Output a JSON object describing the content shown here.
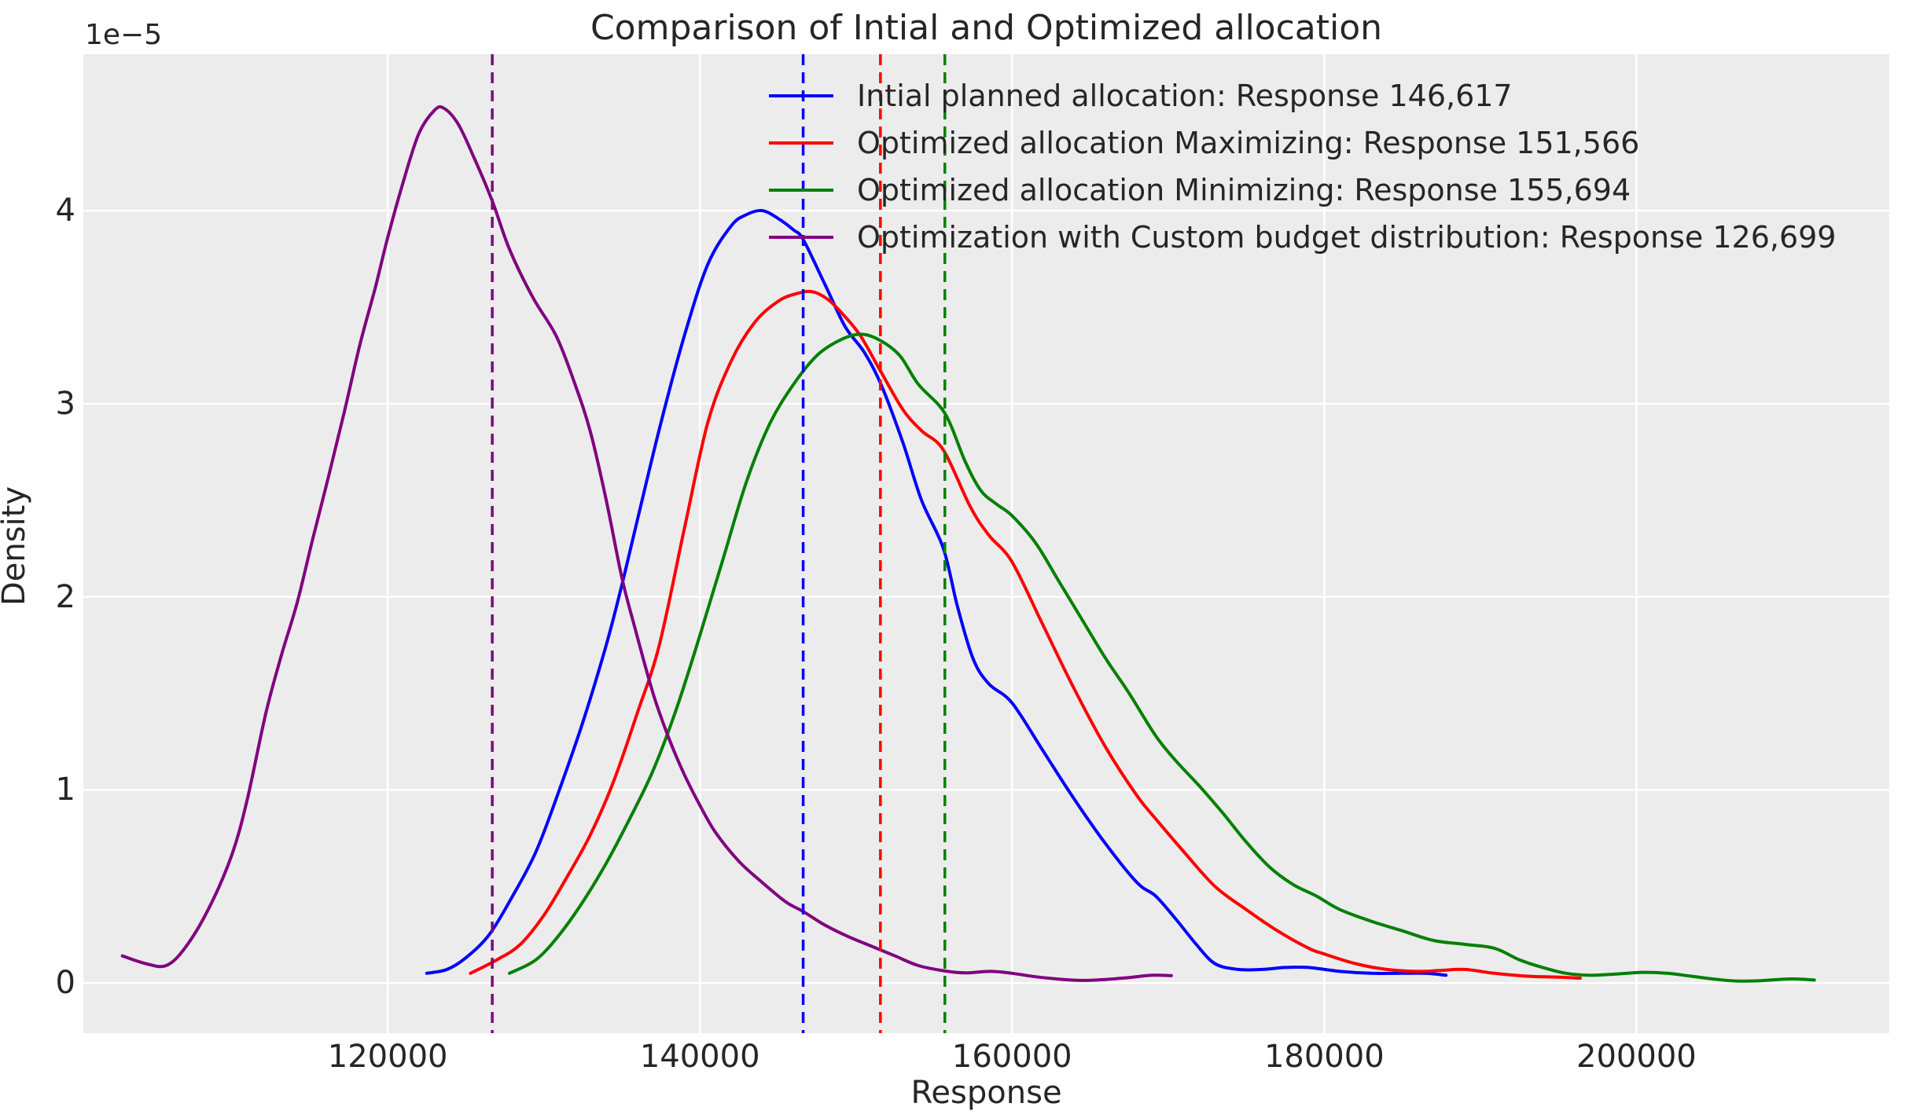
{
  "figure": {
    "title": "Comparison of Intial and Optimized allocation",
    "background_color": "#ffffff",
    "axes_background_color": "#ececec",
    "grid_color": "#ffffff",
    "text_color": "#262626"
  },
  "chart_data": {
    "type": "line",
    "title": "Comparison of Intial and Optimized allocation",
    "xlabel": "Response",
    "ylabel": "Density",
    "y_offset_label": "1e−5",
    "y_unit": "1e-5",
    "grid": true,
    "legend_frame": false,
    "legend_position": "upper center",
    "xlim": [
      100500,
      216200
    ],
    "ylim": [
      -0.26,
      4.81
    ],
    "x_ticks": [
      120000,
      140000,
      160000,
      180000,
      200000
    ],
    "x_tick_labels": [
      "120000",
      "140000",
      "160000",
      "180000",
      "200000"
    ],
    "y_ticks": [
      0,
      1,
      2,
      3,
      4
    ],
    "y_tick_labels": [
      "0",
      "1",
      "2",
      "3",
      "4"
    ],
    "series": [
      {
        "name": "Intial planned allocation: Response 146,617",
        "color": "#0000ff",
        "style": "solid",
        "points": [
          [
            122500,
            0.05
          ],
          [
            123800,
            0.07
          ],
          [
            125000,
            0.13
          ],
          [
            126500,
            0.25
          ],
          [
            128000,
            0.45
          ],
          [
            129500,
            0.68
          ],
          [
            131000,
            1.0
          ],
          [
            132500,
            1.35
          ],
          [
            134000,
            1.75
          ],
          [
            135000,
            2.06
          ],
          [
            136000,
            2.4
          ],
          [
            137500,
            2.9
          ],
          [
            139000,
            3.35
          ],
          [
            140500,
            3.72
          ],
          [
            142000,
            3.92
          ],
          [
            143000,
            3.98
          ],
          [
            144000,
            4.0
          ],
          [
            145000,
            3.96
          ],
          [
            146000,
            3.9
          ],
          [
            146617,
            3.85
          ],
          [
            148000,
            3.62
          ],
          [
            149300,
            3.4
          ],
          [
            150500,
            3.27
          ],
          [
            151600,
            3.1
          ],
          [
            153000,
            2.8
          ],
          [
            154200,
            2.5
          ],
          [
            155600,
            2.25
          ],
          [
            156500,
            1.95
          ],
          [
            157500,
            1.68
          ],
          [
            158500,
            1.55
          ],
          [
            160000,
            1.45
          ],
          [
            162000,
            1.2
          ],
          [
            164000,
            0.95
          ],
          [
            166000,
            0.72
          ],
          [
            168000,
            0.52
          ],
          [
            169200,
            0.45
          ],
          [
            170500,
            0.33
          ],
          [
            171800,
            0.2
          ],
          [
            173000,
            0.1
          ],
          [
            174500,
            0.07
          ],
          [
            176000,
            0.07
          ],
          [
            177500,
            0.08
          ],
          [
            179000,
            0.08
          ],
          [
            181000,
            0.06
          ],
          [
            183000,
            0.05
          ],
          [
            185000,
            0.05
          ],
          [
            186500,
            0.05
          ],
          [
            187800,
            0.04
          ]
        ]
      },
      {
        "name": "Optimized allocation Maximizing: Response 151,566",
        "color": "#ff0000",
        "style": "solid",
        "points": [
          [
            125300,
            0.05
          ],
          [
            127000,
            0.12
          ],
          [
            128500,
            0.2
          ],
          [
            130000,
            0.35
          ],
          [
            131500,
            0.55
          ],
          [
            133000,
            0.77
          ],
          [
            134500,
            1.05
          ],
          [
            136000,
            1.4
          ],
          [
            137400,
            1.75
          ],
          [
            139000,
            2.35
          ],
          [
            140500,
            2.9
          ],
          [
            142000,
            3.22
          ],
          [
            143500,
            3.42
          ],
          [
            145000,
            3.53
          ],
          [
            146200,
            3.57
          ],
          [
            147200,
            3.58
          ],
          [
            148200,
            3.54
          ],
          [
            149200,
            3.46
          ],
          [
            150300,
            3.35
          ],
          [
            151566,
            3.17
          ],
          [
            153000,
            2.97
          ],
          [
            154200,
            2.86
          ],
          [
            155600,
            2.76
          ],
          [
            157300,
            2.47
          ],
          [
            158500,
            2.32
          ],
          [
            160000,
            2.18
          ],
          [
            162000,
            1.85
          ],
          [
            164000,
            1.52
          ],
          [
            166000,
            1.22
          ],
          [
            168000,
            0.97
          ],
          [
            169200,
            0.85
          ],
          [
            171000,
            0.68
          ],
          [
            173000,
            0.5
          ],
          [
            175000,
            0.38
          ],
          [
            177000,
            0.27
          ],
          [
            179000,
            0.18
          ],
          [
            180000,
            0.15
          ],
          [
            182000,
            0.1
          ],
          [
            184000,
            0.07
          ],
          [
            186000,
            0.06
          ],
          [
            187500,
            0.065
          ],
          [
            189000,
            0.07
          ],
          [
            190900,
            0.05
          ],
          [
            193000,
            0.035
          ],
          [
            195000,
            0.03
          ],
          [
            196400,
            0.025
          ]
        ]
      },
      {
        "name": "Optimized allocation Minimizing: Response 155,694",
        "color": "#008000",
        "style": "solid",
        "points": [
          [
            127800,
            0.05
          ],
          [
            129500,
            0.12
          ],
          [
            131000,
            0.25
          ],
          [
            132500,
            0.42
          ],
          [
            134000,
            0.62
          ],
          [
            135500,
            0.85
          ],
          [
            137000,
            1.1
          ],
          [
            138500,
            1.42
          ],
          [
            140000,
            1.8
          ],
          [
            141500,
            2.2
          ],
          [
            143000,
            2.6
          ],
          [
            144500,
            2.9
          ],
          [
            146000,
            3.1
          ],
          [
            147500,
            3.25
          ],
          [
            149000,
            3.33
          ],
          [
            150300,
            3.36
          ],
          [
            151500,
            3.33
          ],
          [
            152800,
            3.25
          ],
          [
            154000,
            3.1
          ],
          [
            155694,
            2.95
          ],
          [
            157000,
            2.7
          ],
          [
            158000,
            2.55
          ],
          [
            159000,
            2.48
          ],
          [
            160000,
            2.42
          ],
          [
            161500,
            2.28
          ],
          [
            163000,
            2.08
          ],
          [
            164500,
            1.88
          ],
          [
            166000,
            1.68
          ],
          [
            167500,
            1.5
          ],
          [
            169200,
            1.28
          ],
          [
            170500,
            1.15
          ],
          [
            172000,
            1.02
          ],
          [
            173500,
            0.88
          ],
          [
            175000,
            0.73
          ],
          [
            176500,
            0.6
          ],
          [
            178000,
            0.51
          ],
          [
            179500,
            0.45
          ],
          [
            181000,
            0.38
          ],
          [
            183000,
            0.32
          ],
          [
            185000,
            0.27
          ],
          [
            187000,
            0.22
          ],
          [
            189000,
            0.2
          ],
          [
            190900,
            0.18
          ],
          [
            192500,
            0.12
          ],
          [
            194000,
            0.08
          ],
          [
            195500,
            0.05
          ],
          [
            197000,
            0.04
          ],
          [
            198500,
            0.045
          ],
          [
            200400,
            0.055
          ],
          [
            202000,
            0.05
          ],
          [
            203500,
            0.035
          ],
          [
            205000,
            0.02
          ],
          [
            206400,
            0.01
          ],
          [
            208000,
            0.012
          ],
          [
            209500,
            0.02
          ],
          [
            210500,
            0.02
          ],
          [
            211400,
            0.015
          ]
        ]
      },
      {
        "name": "Optimization with Custom budget distribution: Response 126,699",
        "color": "#800080",
        "style": "solid",
        "points": [
          [
            103000,
            0.14
          ],
          [
            104500,
            0.1
          ],
          [
            105800,
            0.09
          ],
          [
            107000,
            0.18
          ],
          [
            108500,
            0.38
          ],
          [
            110000,
            0.66
          ],
          [
            111000,
            0.95
          ],
          [
            112200,
            1.4
          ],
          [
            113200,
            1.7
          ],
          [
            114200,
            1.97
          ],
          [
            115200,
            2.3
          ],
          [
            116200,
            2.62
          ],
          [
            117200,
            2.95
          ],
          [
            118200,
            3.3
          ],
          [
            119200,
            3.6
          ],
          [
            120000,
            3.86
          ],
          [
            121000,
            4.15
          ],
          [
            122000,
            4.4
          ],
          [
            123000,
            4.52
          ],
          [
            123600,
            4.53
          ],
          [
            124500,
            4.45
          ],
          [
            125500,
            4.28
          ],
          [
            126699,
            4.05
          ],
          [
            127800,
            3.8
          ],
          [
            129300,
            3.55
          ],
          [
            130800,
            3.35
          ],
          [
            132000,
            3.1
          ],
          [
            133000,
            2.85
          ],
          [
            134000,
            2.5
          ],
          [
            135000,
            2.1
          ],
          [
            135800,
            1.85
          ],
          [
            137000,
            1.5
          ],
          [
            138000,
            1.27
          ],
          [
            139000,
            1.08
          ],
          [
            140000,
            0.92
          ],
          [
            141000,
            0.78
          ],
          [
            142500,
            0.63
          ],
          [
            144000,
            0.52
          ],
          [
            145500,
            0.42
          ],
          [
            146617,
            0.37
          ],
          [
            148000,
            0.3
          ],
          [
            149500,
            0.24
          ],
          [
            151000,
            0.19
          ],
          [
            152500,
            0.14
          ],
          [
            154000,
            0.09
          ],
          [
            155700,
            0.062
          ],
          [
            157000,
            0.052
          ],
          [
            158600,
            0.06
          ],
          [
            160000,
            0.05
          ],
          [
            161500,
            0.032
          ],
          [
            163000,
            0.02
          ],
          [
            164500,
            0.013
          ],
          [
            166000,
            0.018
          ],
          [
            167500,
            0.028
          ],
          [
            169000,
            0.04
          ],
          [
            170200,
            0.038
          ]
        ]
      }
    ],
    "mean_lines": [
      {
        "x": 146617,
        "color": "#0000ff",
        "style": "dashed",
        "series": "Intial planned allocation"
      },
      {
        "x": 151566,
        "color": "#ff0000",
        "style": "dashed",
        "series": "Optimized allocation Maximizing"
      },
      {
        "x": 155694,
        "color": "#008000",
        "style": "dashed",
        "series": "Optimized allocation Minimizing"
      },
      {
        "x": 126699,
        "color": "#800080",
        "style": "dashed",
        "series": "Optimization with Custom budget distribution"
      }
    ],
    "legend": [
      {
        "label": "Intial planned allocation: Response 146,617",
        "color": "#0000ff"
      },
      {
        "label": "Optimized allocation Maximizing: Response 151,566",
        "color": "#ff0000"
      },
      {
        "label": "Optimized allocation Minimizing: Response 155,694",
        "color": "#008000"
      },
      {
        "label": "Optimization with Custom budget distribution: Response 126,699",
        "color": "#800080"
      }
    ]
  }
}
